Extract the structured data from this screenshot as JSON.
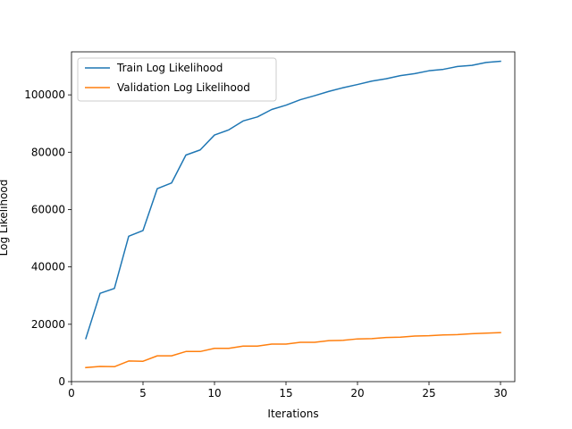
{
  "chart_data": {
    "type": "line",
    "title": "",
    "xlabel": "Iterations",
    "ylabel": "Log Likelihood",
    "xlim": [
      0,
      31
    ],
    "ylim": [
      0,
      115000
    ],
    "xticks": [
      0,
      5,
      10,
      15,
      20,
      25,
      30
    ],
    "yticks": [
      0,
      20000,
      40000,
      60000,
      80000,
      100000
    ],
    "grid": false,
    "legend": "top-left",
    "x": [
      1,
      2,
      3,
      4,
      5,
      6,
      7,
      8,
      9,
      10,
      11,
      12,
      13,
      14,
      15,
      16,
      17,
      18,
      19,
      20,
      21,
      22,
      23,
      24,
      25,
      26,
      27,
      28,
      29,
      30
    ],
    "series": [
      {
        "name": "Train Log Likelihood",
        "color": "#1f77b4",
        "values": [
          15000,
          30800,
          32500,
          50700,
          52700,
          67300,
          69300,
          79000,
          80800,
          86000,
          87800,
          90900,
          92300,
          94900,
          96400,
          98300,
          99700,
          101200,
          102500,
          103600,
          104800,
          105600,
          106700,
          107400,
          108400,
          108900,
          109900,
          110300,
          111300,
          111700
        ]
      },
      {
        "name": "Validation Log Likelihood",
        "color": "#ff7f0e",
        "values": [
          4900,
          5300,
          5200,
          7200,
          7100,
          9000,
          9000,
          10500,
          10500,
          11600,
          11600,
          12400,
          12400,
          13100,
          13100,
          13700,
          13700,
          14300,
          14400,
          14900,
          15000,
          15400,
          15500,
          15900,
          16000,
          16300,
          16400,
          16700,
          16900,
          17100
        ]
      }
    ]
  }
}
